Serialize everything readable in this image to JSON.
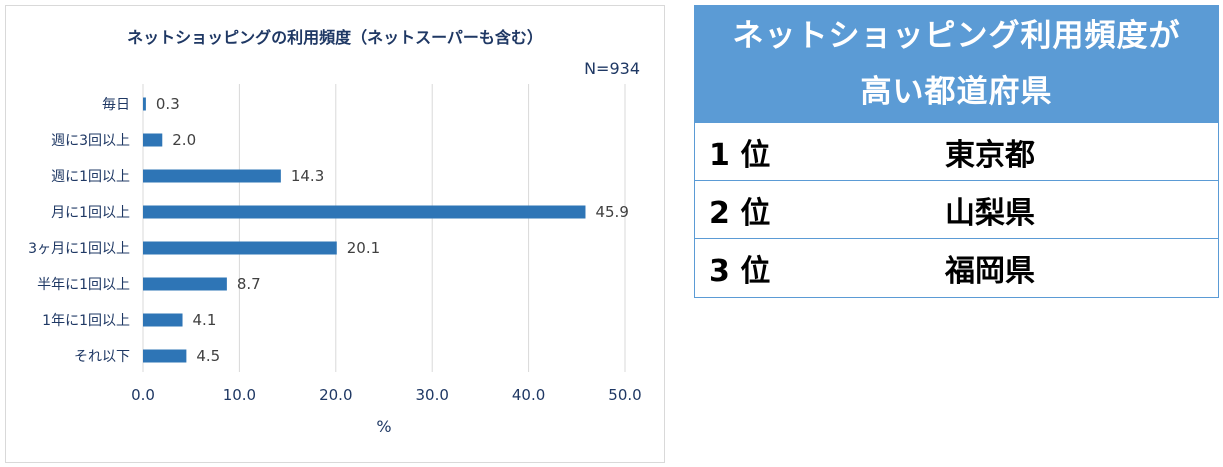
{
  "chart_data": {
    "type": "bar",
    "orientation": "horizontal",
    "title": "ネットショッピングの利用頻度（ネットスーパーも含む）",
    "sample_size": "N=934",
    "categories": [
      "毎日",
      "週に3回以上",
      "週に1回以上",
      "月に1回以上",
      "3ヶ月に1回以上",
      "半年に1回以上",
      "1年に1回以上",
      "それ以下"
    ],
    "values": [
      0.3,
      2.0,
      14.3,
      45.9,
      20.1,
      8.7,
      4.1,
      4.5
    ],
    "value_labels": [
      "0.3",
      "2.0",
      "14.3",
      "45.9",
      "20.1",
      "8.7",
      "4.1",
      "4.5"
    ],
    "xlabel": "%",
    "xlim": [
      0,
      50
    ],
    "xticks": [
      "0.0",
      "10.0",
      "20.0",
      "30.0",
      "40.0",
      "50.0"
    ],
    "grid": true,
    "bar_color": "#2e75b6"
  },
  "ranking": {
    "title_line1": "ネットショッピング利用頻度が",
    "title_line2": "高い都道府県",
    "header_color": "#5b9bd5",
    "rows": [
      {
        "rank": "1 位",
        "prefecture": "東京都"
      },
      {
        "rank": "2 位",
        "prefecture": "山梨県"
      },
      {
        "rank": "3 位",
        "prefecture": "福岡県"
      }
    ]
  }
}
